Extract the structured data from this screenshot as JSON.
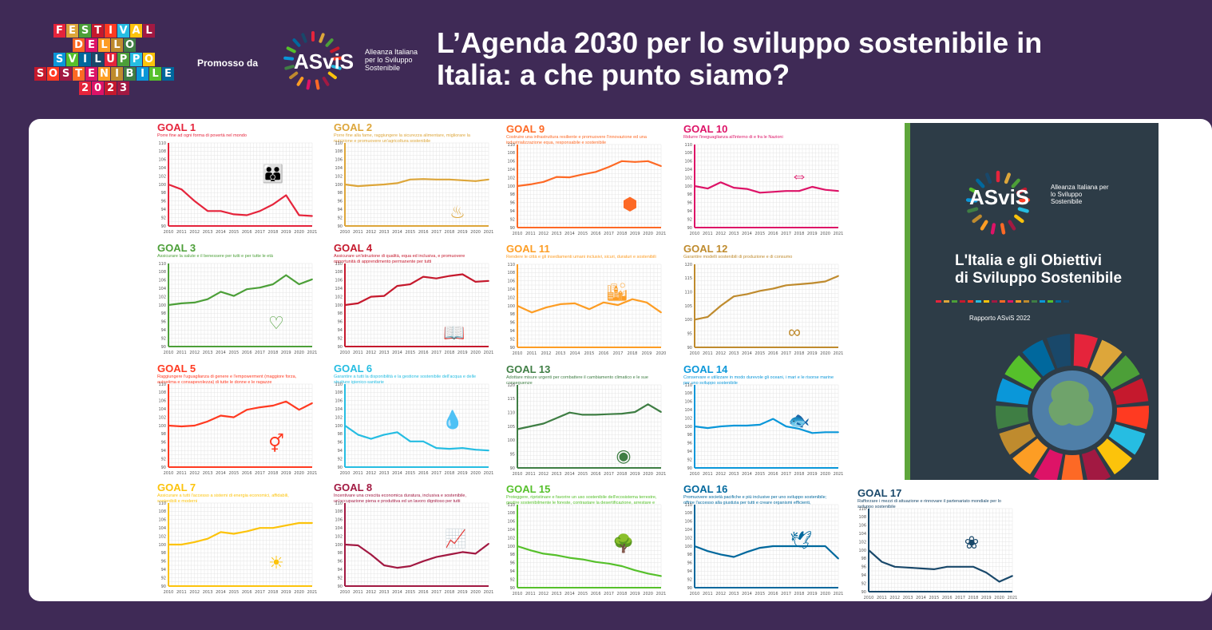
{
  "header": {
    "festival_rows": [
      {
        "letters": [
          "F",
          "E",
          "S",
          "T",
          "I",
          "V",
          "A",
          "L"
        ],
        "colors": [
          "#e5243b",
          "#dda63a",
          "#4c9f38",
          "#c5192d",
          "#ff3a21",
          "#26bde2",
          "#fcc30b",
          "#a21942"
        ]
      },
      {
        "letters": [
          "D",
          "E",
          "L",
          "L",
          "O"
        ],
        "colors": [
          "#fd6925",
          "#dd1367",
          "#fd9d24",
          "#bf8b2e",
          "#3f7e44"
        ]
      },
      {
        "letters": [
          "S",
          "V",
          "I",
          "L",
          "U",
          "P",
          "P",
          "O"
        ],
        "colors": [
          "#0a97d9",
          "#56c02b",
          "#00689d",
          "#19486a",
          "#e5243b",
          "#4c9f38",
          "#26bde2",
          "#fcc30b"
        ]
      },
      {
        "letters": [
          "S",
          "O",
          "S",
          "T",
          "E",
          "N",
          "I",
          "B",
          "I",
          "L",
          "E"
        ],
        "colors": [
          "#c5192d",
          "#ff3a21",
          "#a21942",
          "#fd6925",
          "#dd1367",
          "#fd9d24",
          "#bf8b2e",
          "#3f7e44",
          "#0a97d9",
          "#56c02b",
          "#00689d"
        ]
      },
      {
        "letters": [
          "2",
          "0",
          "2",
          "3"
        ],
        "colors": [
          "#e5243b",
          "#dd1367",
          "#c5192d",
          "#a21942"
        ]
      }
    ],
    "promoted_by": "Promosso da",
    "asvis_brand": "ASviS",
    "asvis_alliance": "Alleanza Italiana per lo Sviluppo Sostenibile",
    "title_line1": "L’Agenda 2030 per lo sviluppo sostenibile in",
    "title_line2": "Italia: a che punto siamo?"
  },
  "report": {
    "brand": "ASviS",
    "alliance": "Alleanza Italiana per lo Sviluppo Sostenibile",
    "title_line1": "L'Italia e gli Obiettivi",
    "title_line2": "di Sviluppo Sostenibile",
    "subtitle": "Rapporto ASviS 2022"
  },
  "chart_data": [
    {
      "type": "line",
      "goal": "GOAL 1",
      "desc": "Porre fine ad ogni forma di povertà nel mondo",
      "color": "#e5243b",
      "icon": "family-icon",
      "glyph": "👪",
      "ylim": [
        90,
        110
      ],
      "yticks": [
        90,
        92,
        94,
        96,
        98,
        100,
        102,
        104,
        106,
        108,
        110
      ],
      "x": [
        "2010",
        "2011",
        "2012",
        "2013",
        "2014",
        "2015",
        "2016",
        "2017",
        "2018",
        "2019",
        "2020",
        "2021"
      ],
      "values": [
        100,
        98.8,
        96,
        93.6,
        93.6,
        92.8,
        92.6,
        93.6,
        95.2,
        97.4,
        92.6,
        92.4
      ]
    },
    {
      "type": "line",
      "goal": "GOAL 2",
      "desc": "Porre fine alla fame, raggiungere la sicurezza alimentare, migliorare la nutrizione e promuovere un'agricoltura sostenibile",
      "color": "#dda63a",
      "icon": "bowl-icon",
      "glyph": "♨",
      "ylim": [
        90,
        110
      ],
      "yticks": [
        90,
        92,
        94,
        96,
        98,
        100,
        102,
        104,
        106,
        108,
        110
      ],
      "x": [
        "2010",
        "2011",
        "2012",
        "2013",
        "2014",
        "2015",
        "2016",
        "2017",
        "2018",
        "2019",
        "2020",
        "2021"
      ],
      "values": [
        100,
        99.6,
        99.8,
        100,
        100.3,
        101.2,
        101.3,
        101.2,
        101.2,
        101,
        100.8,
        101.2
      ]
    },
    {
      "type": "line",
      "goal": "GOAL 9",
      "desc": "Costruire una infrastruttura resiliente e promuovere l'innovazione ed una industrializzazione equa, responsabile e sostenibile",
      "color": "#fd6925",
      "icon": "cube-icon",
      "glyph": "⬢",
      "ylim": [
        90,
        110
      ],
      "yticks": [
        90,
        92,
        94,
        96,
        98,
        100,
        102,
        104,
        106,
        108,
        110
      ],
      "x": [
        "2010",
        "2011",
        "2012",
        "2013",
        "2014",
        "2015",
        "2016",
        "2017",
        "2018",
        "2019",
        "2020",
        "2021"
      ],
      "values": [
        100,
        100.4,
        101,
        102.2,
        102.1,
        102.8,
        103.4,
        104.6,
        106,
        105.8,
        106,
        104.8
      ]
    },
    {
      "type": "line",
      "goal": "GOAL 10",
      "desc": "Ridurre l'ineguaglianza all'interno di e fra le Nazioni",
      "color": "#dd1367",
      "icon": "equality-icon",
      "glyph": "⇔",
      "ylim": [
        90,
        110
      ],
      "yticks": [
        90,
        92,
        94,
        96,
        98,
        100,
        102,
        104,
        106,
        108,
        110
      ],
      "x": [
        "2010",
        "2011",
        "2012",
        "2013",
        "2014",
        "2015",
        "2016",
        "2017",
        "2018",
        "2019",
        "2020",
        "2021"
      ],
      "values": [
        100,
        99.4,
        100.9,
        99.6,
        99.3,
        98.4,
        98.6,
        98.8,
        98.8,
        99.8,
        99.1,
        98.8
      ]
    },
    {
      "type": "line",
      "goal": "GOAL 3",
      "desc": "Assicurare la salute e il benessere per tutti e per tutte le età",
      "color": "#4c9f38",
      "icon": "heartbeat-icon",
      "glyph": "♡",
      "ylim": [
        90,
        110
      ],
      "yticks": [
        90,
        92,
        94,
        96,
        98,
        100,
        102,
        104,
        106,
        108,
        110
      ],
      "x": [
        "2010",
        "2011",
        "2012",
        "2013",
        "2014",
        "2015",
        "2016",
        "2017",
        "2018",
        "2019",
        "2020",
        "2021"
      ],
      "values": [
        100,
        100.4,
        100.6,
        101.4,
        103.2,
        102.2,
        103.8,
        104.2,
        105,
        107.2,
        105,
        106.2
      ]
    },
    {
      "type": "line",
      "goal": "GOAL 4",
      "desc": "Assicurare un'istruzione di qualità, equa ed inclusiva, e promuovere opportunità di apprendimento permanente per tutti",
      "color": "#c5192d",
      "icon": "book-icon",
      "glyph": "📖",
      "ylim": [
        90,
        110
      ],
      "yticks": [
        90,
        92,
        94,
        96,
        98,
        100,
        102,
        104,
        106,
        108,
        110
      ],
      "x": [
        "2010",
        "2011",
        "2012",
        "2013",
        "2014",
        "2015",
        "2016",
        "2017",
        "2018",
        "2019",
        "2020",
        "2021"
      ],
      "values": [
        100,
        100.4,
        102,
        102.2,
        104.6,
        105,
        106.8,
        106.4,
        107,
        107.4,
        105.6,
        105.8
      ]
    },
    {
      "type": "line",
      "goal": "GOAL 11",
      "desc": "Rendere le città e gli insediamenti umani inclusivi, sicuri, duraturi e sostenibili",
      "color": "#fd9d24",
      "icon": "city-icon",
      "glyph": "🏙",
      "ylim": [
        90,
        110
      ],
      "yticks": [
        90,
        92,
        94,
        96,
        98,
        100,
        102,
        104,
        106,
        108,
        110
      ],
      "x": [
        "2010",
        "2011",
        "2012",
        "2013",
        "2014",
        "2015",
        "2016",
        "2017",
        "2018",
        "2019",
        "2020"
      ],
      "values": [
        100,
        98.4,
        99.6,
        100.4,
        100.6,
        99.2,
        100.8,
        100.2,
        101.6,
        100.8,
        98.4
      ]
    },
    {
      "type": "line",
      "goal": "GOAL 12",
      "desc": "Garantire modelli sostenibili di produzione e di consumo",
      "color": "#bf8b2e",
      "icon": "infinity-icon",
      "glyph": "∞",
      "ylim": [
        90,
        120
      ],
      "yticks": [
        90,
        95,
        100,
        105,
        110,
        115,
        120
      ],
      "x": [
        "2010",
        "2011",
        "2012",
        "2013",
        "2014",
        "2015",
        "2016",
        "2017",
        "2018",
        "2019",
        "2020",
        "2021"
      ],
      "values": [
        100,
        101,
        105,
        108.4,
        109.2,
        110.4,
        111.2,
        112.4,
        112.8,
        113.2,
        113.8,
        115.8
      ]
    },
    {
      "type": "line",
      "goal": "GOAL 5",
      "desc": "Raggiungere l'uguaglianza di genere e l'empowerment (maggiore forza, autostima e consapevolezza) di tutte le donne e le ragazze",
      "color": "#ff3a21",
      "icon": "gender-icon",
      "glyph": "⚥",
      "ylim": [
        90,
        110
      ],
      "yticks": [
        90,
        92,
        94,
        96,
        98,
        100,
        102,
        104,
        106,
        108,
        110
      ],
      "x": [
        "2010",
        "2011",
        "2012",
        "2013",
        "2014",
        "2015",
        "2016",
        "2017",
        "2018",
        "2019",
        "2020",
        "2021"
      ],
      "values": [
        100,
        99.8,
        100,
        101,
        102.4,
        102,
        103.8,
        104.4,
        104.8,
        105.8,
        103.8,
        105.4
      ]
    },
    {
      "type": "line",
      "goal": "GOAL 6",
      "desc": "Garantire a tutti la disponibilità e la gestione sostenibile dell'acqua e delle strutture igienico-sanitarie",
      "color": "#26bde2",
      "icon": "water-icon",
      "glyph": "💧",
      "ylim": [
        90,
        110
      ],
      "yticks": [
        90,
        92,
        94,
        96,
        98,
        100,
        102,
        104,
        106,
        108,
        110
      ],
      "x": [
        "2010",
        "2011",
        "2012",
        "2013",
        "2014",
        "2015",
        "2016",
        "2017",
        "2018",
        "2019",
        "2020",
        "2021"
      ],
      "values": [
        100,
        97.8,
        96.8,
        97.8,
        98.4,
        96.2,
        96.2,
        94.6,
        94.4,
        94.6,
        94.2,
        94.0
      ]
    },
    {
      "type": "line",
      "goal": "GOAL 13",
      "desc": "Adottare misure urgenti per combattere il cambiamento climatico e le sue conseguenze",
      "color": "#3f7e44",
      "icon": "eye-globe-icon",
      "glyph": "◉",
      "ylim": [
        90,
        120
      ],
      "yticks": [
        90,
        95,
        100,
        105,
        110,
        115,
        120
      ],
      "x": [
        "2010",
        "2011",
        "2012",
        "2013",
        "2014",
        "2015",
        "2016",
        "2017",
        "2018",
        "2019",
        "2020",
        "2021"
      ],
      "values": [
        104,
        105,
        106,
        108,
        110,
        109.2,
        109.2,
        109.4,
        109.6,
        110.2,
        113,
        110.2
      ]
    },
    {
      "type": "line",
      "goal": "GOAL 14",
      "desc": "Conservare e utilizzare in modo durevole gli oceani, i mari e le risorse marine per uno sviluppo sostenibile",
      "color": "#0a97d9",
      "icon": "fish-icon",
      "glyph": "🐟",
      "ylim": [
        90,
        110
      ],
      "yticks": [
        90,
        92,
        94,
        96,
        98,
        100,
        102,
        104,
        106,
        108,
        110
      ],
      "x": [
        "2010",
        "2011",
        "2012",
        "2013",
        "2014",
        "2015",
        "2016",
        "2017",
        "2018",
        "2019",
        "2020",
        "2021"
      ],
      "values": [
        100,
        99.6,
        100,
        100.2,
        100.2,
        100.4,
        101.8,
        100,
        99.4,
        98.4,
        98.6,
        98.6
      ]
    },
    {
      "type": "line",
      "goal": "GOAL 7",
      "desc": "Assicurare a tutti l'accesso a sistemi di energia economici, affidabili, sostenibili e moderni",
      "color": "#fcc30b",
      "icon": "sun-icon",
      "glyph": "☀",
      "ylim": [
        90,
        110
      ],
      "yticks": [
        90,
        92,
        94,
        96,
        98,
        100,
        102,
        104,
        106,
        108,
        110
      ],
      "x": [
        "2010",
        "2011",
        "2012",
        "2013",
        "2014",
        "2015",
        "2016",
        "2017",
        "2018",
        "2019",
        "2020",
        "2021"
      ],
      "values": [
        100,
        100,
        100.6,
        101.4,
        103,
        102.6,
        103.2,
        104,
        104,
        104.6,
        105.2,
        105.2
      ]
    },
    {
      "type": "line",
      "goal": "GOAL 8",
      "desc": "Incentivare una crescita economica duratura, inclusiva e sostenibile, un'occupazione piena e produttiva ed un lavoro dignitoso per tutti",
      "color": "#a21942",
      "icon": "growth-chart-icon",
      "glyph": "📈",
      "ylim": [
        90,
        110
      ],
      "yticks": [
        90,
        92,
        94,
        96,
        98,
        100,
        102,
        104,
        106,
        108,
        110
      ],
      "x": [
        "2010",
        "2011",
        "2012",
        "2013",
        "2014",
        "2015",
        "2016",
        "2017",
        "2018",
        "2019",
        "2020",
        "2021"
      ],
      "values": [
        100,
        99.8,
        97.6,
        95,
        94.4,
        94.8,
        96,
        97,
        97.6,
        98.2,
        97.8,
        100.2
      ]
    },
    {
      "type": "line",
      "goal": "GOAL 15",
      "desc": "Proteggere, ripristinare e favorire un uso sostenibile dell'ecosistema terrestre, gestire sostenibilmente le foreste, contrastare la desertificazione, arrestare e far retrocedere il degrado del terreno, e fermare la perdita di diversità biologica",
      "color": "#56c02b",
      "icon": "tree-icon",
      "glyph": "🌳",
      "ylim": [
        90,
        110
      ],
      "yticks": [
        90,
        92,
        94,
        96,
        98,
        100,
        102,
        104,
        106,
        108,
        110
      ],
      "x": [
        "2010",
        "2011",
        "2012",
        "2013",
        "2014",
        "2015",
        "2016",
        "2017",
        "2018",
        "2019",
        "2020",
        "2021"
      ],
      "values": [
        100,
        99,
        98.2,
        97.8,
        97.2,
        96.8,
        96.2,
        95.8,
        95.2,
        94.2,
        93.4,
        92.8
      ]
    },
    {
      "type": "line",
      "goal": "GOAL 16",
      "desc": "Promuovere società pacifiche e più inclusive per uno sviluppo sostenibile; offrire l'accesso alla giustizia per tutti e creare organismi efficienti, responsabili e inclusivi a tutti i livelli",
      "color": "#00689d",
      "icon": "dove-icon",
      "glyph": "🕊",
      "ylim": [
        90,
        110
      ],
      "yticks": [
        90,
        92,
        94,
        96,
        98,
        100,
        102,
        104,
        106,
        108,
        110
      ],
      "x": [
        "2010",
        "2011",
        "2012",
        "2013",
        "2014",
        "2015",
        "2016",
        "2017",
        "2018",
        "2019",
        "2020",
        "2021"
      ],
      "values": [
        100,
        98.8,
        98,
        97.4,
        98.6,
        99.6,
        100,
        100,
        100,
        100,
        100,
        97
      ]
    },
    {
      "type": "line",
      "goal": "GOAL 17",
      "desc": "Rafforzare i mezzi di attuazione e rinnovare il partenariato mondiale per lo sviluppo sostenibile",
      "color": "#19486a",
      "icon": "partnership-icon",
      "glyph": "❀",
      "ylim": [
        90,
        110
      ],
      "yticks": [
        90,
        92,
        94,
        96,
        98,
        100,
        102,
        104,
        106,
        108,
        110
      ],
      "x": [
        "2010",
        "2011",
        "2012",
        "2013",
        "2014",
        "2015",
        "2016",
        "2017",
        "2018",
        "2019",
        "2020",
        "2021"
      ],
      "values": [
        100,
        97.2,
        96,
        95.8,
        95.6,
        95.4,
        96,
        96,
        96,
        94.6,
        92.4,
        93.8
      ]
    }
  ]
}
